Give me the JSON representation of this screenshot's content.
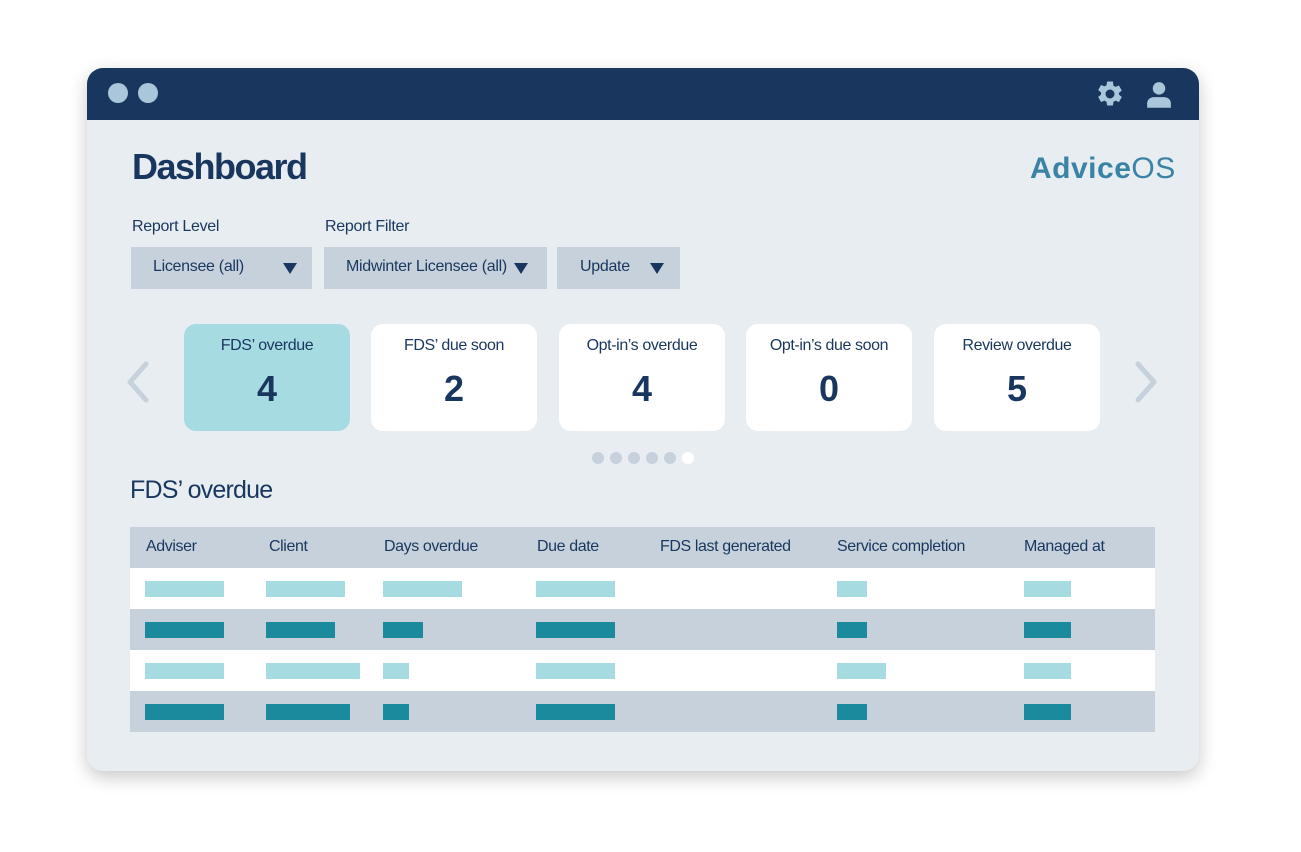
{
  "window": {
    "controls": [
      "window-dot",
      "window-dot"
    ],
    "icons": {
      "settings": "gear-icon",
      "account": "user-icon"
    }
  },
  "header": {
    "title": "Dashboard",
    "brand_bold": "Advice",
    "brand_light": "OS"
  },
  "controls": {
    "report_level_label": "Report Level",
    "report_filter_label": "Report Filter",
    "report_level_value": "Licensee (all)",
    "report_filter_value": "Midwinter Licensee (all)",
    "update_label": "Update"
  },
  "cards": [
    {
      "label": "FDS’ overdue",
      "value": "4",
      "active": true
    },
    {
      "label": "FDS’ due soon",
      "value": "2",
      "active": false
    },
    {
      "label": "Opt-in’s overdue",
      "value": "4",
      "active": false
    },
    {
      "label": "Opt-in’s due soon",
      "value": "0",
      "active": false
    },
    {
      "label": "Review overdue",
      "value": "5",
      "active": false
    }
  ],
  "pager": {
    "count": 6,
    "active_index": 5
  },
  "section": {
    "title": "FDS’ overdue"
  },
  "table": {
    "columns": [
      "Adviser",
      "Client",
      "Days overdue",
      "Due date",
      "FDS last generated",
      "Service completion",
      "Managed at"
    ],
    "rows_note": "placeholder bars only, no text"
  },
  "colors": {
    "titlebar": "#19375e",
    "accent": "#3b83a4",
    "card_active": "#a6dbe1",
    "placeholder_light": "#a6dbe1",
    "placeholder_dark": "#1a8a9c",
    "panel": "#e7edf0"
  }
}
